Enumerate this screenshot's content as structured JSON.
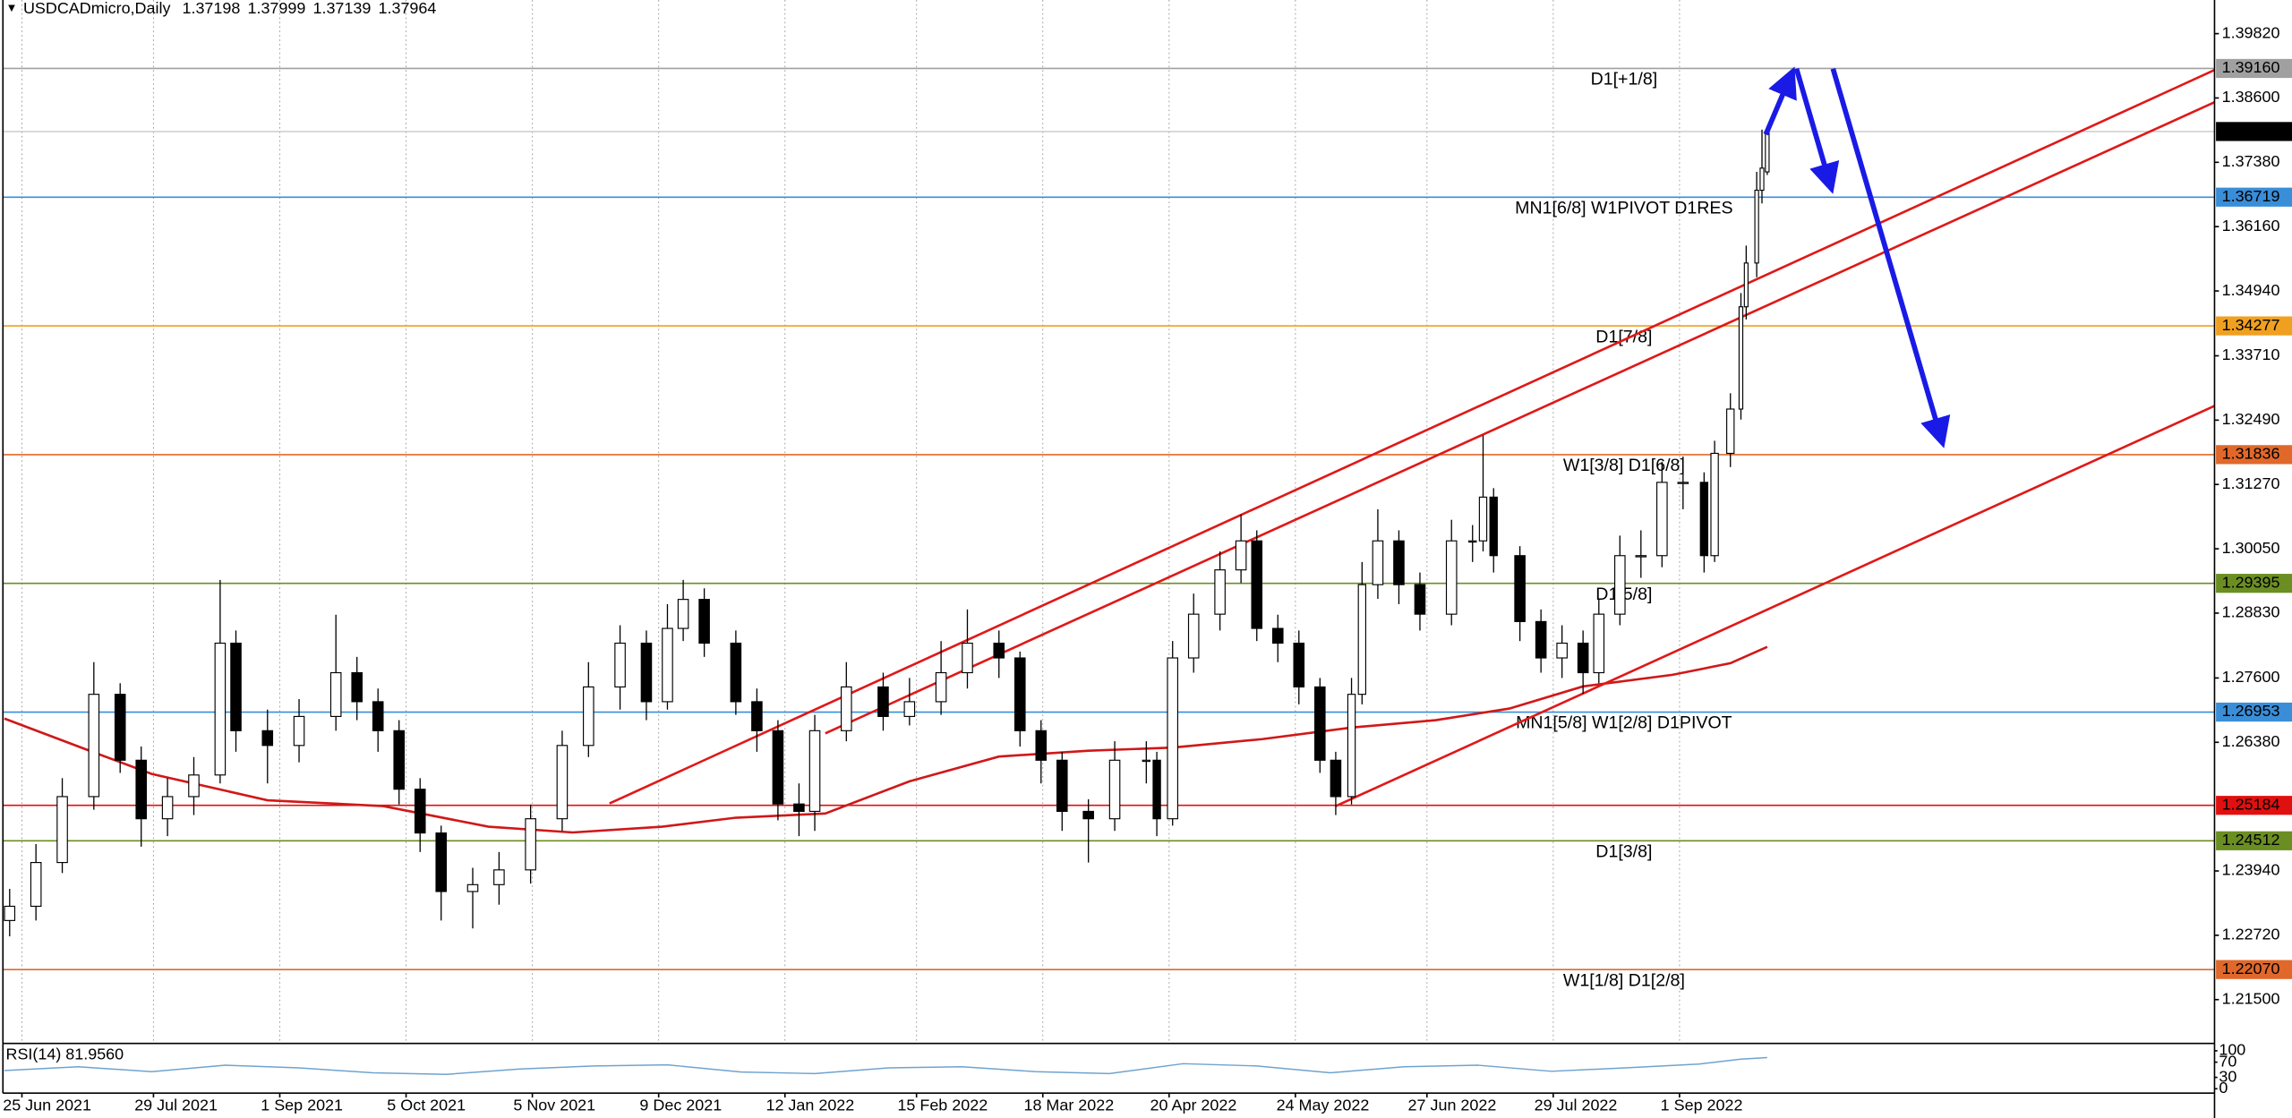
{
  "chart_data": {
    "type": "candlestick",
    "title": "USDCADmicro,Daily",
    "x": [
      1,
      6,
      11,
      17,
      22,
      26,
      31,
      36,
      41,
      44,
      50,
      56,
      63,
      67,
      71,
      75,
      79,
      83,
      89,
      94,
      100,
      106,
      111,
      117,
      122,
      126,
      129,
      133,
      139,
      143,
      147,
      151,
      154,
      160,
      167,
      172,
      178,
      183,
      189,
      193,
      197,
      201,
      206,
      211,
      217,
      219,
      222,
      226,
      231,
      235,
      238,
      242,
      246,
      250,
      253,
      256,
      258,
      261,
      265,
      269,
      275,
      279,
      281,
      283,
      288,
      292,
      296,
      300,
      303,
      307,
      311,
      315,
      319,
      323,
      325,
      328,
      330,
      331,
      333,
      334,
      335
    ],
    "open": [
      1.23,
      1.2327,
      1.241,
      1.2535,
      1.2729,
      1.2604,
      1.2493,
      1.2535,
      1.2576,
      1.2826,
      1.266,
      1.2632,
      1.2687,
      1.277,
      1.2715,
      1.266,
      1.2549,
      1.2466,
      1.2355,
      1.2368,
      1.2396,
      1.2493,
      1.2632,
      1.2743,
      1.2826,
      1.2715,
      1.2854,
      1.2909,
      1.2826,
      1.2715,
      1.266,
      1.2521,
      1.2507,
      1.266,
      1.2743,
      1.2687,
      1.2715,
      1.277,
      1.2826,
      1.2798,
      1.266,
      1.2604,
      1.2507,
      1.2493,
      1.2604,
      1.2604,
      1.2493,
      1.2798,
      1.2881,
      1.2965,
      1.302,
      1.2854,
      1.2826,
      1.2743,
      1.2604,
      1.2535,
      1.2729,
      1.2937,
      1.302,
      1.2937,
      1.2881,
      1.302,
      1.302,
      1.3103,
      1.2992,
      1.2867,
      1.2798,
      1.2826,
      1.277,
      1.2881,
      1.2992,
      1.2992,
      1.3131,
      1.3131,
      1.2992,
      1.3186,
      1.327,
      1.3464,
      1.3547,
      1.3685,
      1.37198
    ],
    "high": [
      1.236,
      1.2445,
      1.257,
      1.279,
      1.275,
      1.263,
      1.257,
      1.261,
      1.2946,
      1.285,
      1.27,
      1.272,
      1.288,
      1.28,
      1.274,
      1.268,
      1.257,
      1.248,
      1.24,
      1.243,
      1.252,
      1.266,
      1.279,
      1.286,
      1.285,
      1.29,
      1.2946,
      1.293,
      1.285,
      1.274,
      1.268,
      1.256,
      1.269,
      1.279,
      1.277,
      1.276,
      1.283,
      1.289,
      1.285,
      1.281,
      1.268,
      1.262,
      1.253,
      1.264,
      1.264,
      1.262,
      1.283,
      1.292,
      1.3,
      1.307,
      1.304,
      1.288,
      1.285,
      1.276,
      1.262,
      1.276,
      1.298,
      1.308,
      1.304,
      1.296,
      1.306,
      1.305,
      1.322,
      1.312,
      1.301,
      1.289,
      1.286,
      1.285,
      1.291,
      1.303,
      1.304,
      1.317,
      1.318,
      1.315,
      1.321,
      1.33,
      1.349,
      1.358,
      1.372,
      1.38,
      1.37999
    ],
    "low": [
      1.227,
      1.23,
      1.239,
      1.251,
      1.258,
      1.244,
      1.246,
      1.25,
      1.256,
      1.262,
      1.256,
      1.26,
      1.266,
      1.268,
      1.262,
      1.252,
      1.243,
      1.23,
      1.2285,
      1.233,
      1.237,
      1.247,
      1.261,
      1.27,
      1.268,
      1.27,
      1.283,
      1.28,
      1.269,
      1.262,
      1.249,
      1.246,
      1.247,
      1.264,
      1.266,
      1.267,
      1.269,
      1.274,
      1.276,
      1.263,
      1.256,
      1.247,
      1.241,
      1.247,
      1.256,
      1.246,
      1.248,
      1.277,
      1.285,
      1.294,
      1.283,
      1.279,
      1.271,
      1.258,
      1.25,
      1.252,
      1.271,
      1.291,
      1.29,
      1.285,
      1.286,
      1.298,
      1.3,
      1.296,
      1.283,
      1.277,
      1.276,
      1.273,
      1.275,
      1.286,
      1.295,
      1.297,
      1.308,
      1.296,
      1.298,
      1.316,
      1.325,
      1.344,
      1.352,
      1.366,
      1.37139
    ],
    "close": [
      1.2327,
      1.241,
      1.2535,
      1.2729,
      1.2604,
      1.2493,
      1.2535,
      1.2576,
      1.2826,
      1.266,
      1.2632,
      1.2687,
      1.277,
      1.2715,
      1.266,
      1.2549,
      1.2466,
      1.2355,
      1.2368,
      1.2396,
      1.2493,
      1.2632,
      1.2743,
      1.2826,
      1.2715,
      1.2854,
      1.2909,
      1.2826,
      1.2715,
      1.266,
      1.2521,
      1.2507,
      1.266,
      1.2743,
      1.2687,
      1.2715,
      1.277,
      1.2826,
      1.2798,
      1.266,
      1.2604,
      1.2507,
      1.2493,
      1.2604,
      1.2604,
      1.2493,
      1.2798,
      1.2881,
      1.2965,
      1.302,
      1.2854,
      1.2826,
      1.2743,
      1.2604,
      1.2535,
      1.2729,
      1.2937,
      1.302,
      1.2937,
      1.2881,
      1.302,
      1.302,
      1.3103,
      1.2992,
      1.2867,
      1.2798,
      1.2826,
      1.277,
      1.2881,
      1.2992,
      1.2992,
      1.3131,
      1.3131,
      1.2992,
      1.3186,
      1.327,
      1.3464,
      1.3547,
      1.3685,
      1.3727,
      1.37964
    ],
    "xlim": [
      0,
      420
    ],
    "ylim": [
      1.20696,
      1.40458
    ],
    "yticks": [
      {
        "value": 1.3982,
        "label": "1.39820"
      },
      {
        "value": 1.386,
        "label": "1.38600"
      },
      {
        "value": 1.3738,
        "label": "1.37380"
      },
      {
        "value": 1.3616,
        "label": "1.36160"
      },
      {
        "value": 1.3494,
        "label": "1.34940"
      },
      {
        "value": 1.3371,
        "label": "1.33710"
      },
      {
        "value": 1.3249,
        "label": "1.32490"
      },
      {
        "value": 1.3127,
        "label": "1.31270"
      },
      {
        "value": 1.3005,
        "label": "1.30050"
      },
      {
        "value": 1.2883,
        "label": "1.28830"
      },
      {
        "value": 1.276,
        "label": "1.27600"
      },
      {
        "value": 1.2638,
        "label": "1.26380"
      },
      {
        "value": 1.2394,
        "label": "1.23940"
      },
      {
        "value": 1.2272,
        "label": "1.22720"
      },
      {
        "value": 1.215,
        "label": "1.21500"
      }
    ],
    "xticks": [
      {
        "value": 0,
        "label": "25 Jun 2021"
      },
      {
        "value": 25,
        "label": "29 Jul 2021"
      },
      {
        "value": 49,
        "label": "1 Sep 2021"
      },
      {
        "value": 73,
        "label": "5 Oct 2021"
      },
      {
        "value": 97,
        "label": "5 Nov 2021"
      },
      {
        "value": 121,
        "label": "9 Dec 2021"
      },
      {
        "value": 145,
        "label": "12 Jan 2022"
      },
      {
        "value": 170,
        "label": "15 Feb 2022"
      },
      {
        "value": 194,
        "label": "18 Mar 2022"
      },
      {
        "value": 218,
        "label": "20 Apr 2022"
      },
      {
        "value": 242,
        "label": "24 May 2022"
      },
      {
        "value": 267,
        "label": "27 Jun 2022"
      },
      {
        "value": 291,
        "label": "29 Jul 2022"
      },
      {
        "value": 315,
        "label": "1 Sep 2022"
      }
    ],
    "grid": true,
    "up_color": "#ffffff",
    "down_color": "#000000",
    "moving_average": {
      "color": "#d01818",
      "x": [
        0,
        17,
        28,
        50,
        72,
        92,
        108,
        125,
        139,
        156,
        172,
        189,
        206,
        222,
        239,
        256,
        272,
        286,
        300,
        317,
        328,
        335
      ],
      "values": [
        1.2683,
        1.2619,
        1.2578,
        1.2528,
        1.2517,
        1.2478,
        1.2467,
        1.2478,
        1.2495,
        1.2503,
        1.2564,
        1.2611,
        1.2622,
        1.2628,
        1.2644,
        1.2666,
        1.268,
        1.2702,
        1.2744,
        1.2766,
        1.2788,
        1.2819
      ]
    },
    "trendlines": [
      {
        "color": "#e01818",
        "x": [
          115,
          420
        ],
        "values": [
          1.2522,
          1.3913
        ]
      },
      {
        "color": "#e01818",
        "x": [
          156,
          420
        ],
        "values": [
          1.2655,
          1.3852
        ]
      },
      {
        "color": "#e01818",
        "x": [
          253,
          420
        ],
        "values": [
          1.2517,
          1.3276
        ]
      }
    ],
    "levels": [
      {
        "price": 1.3916,
        "price_label": "1.39160",
        "name": "D1[+1/8]",
        "color": "#a0a0a0"
      },
      {
        "price": 1.36719,
        "price_label": "1.36719",
        "name": "MN1[6/8] W1PIVOT D1RES",
        "color": "#3a8ed8"
      },
      {
        "price": 1.34277,
        "price_label": "1.34277",
        "name": "D1[7/8]",
        "color": "#f0a020"
      },
      {
        "price": 1.31836,
        "price_label": "1.31836",
        "name": "W1[3/8] D1[6/8]",
        "color": "#e0682a"
      },
      {
        "price": 1.29395,
        "price_label": "1.29395",
        "name": "D1[5/8]",
        "color": "#6b8e23"
      },
      {
        "price": 1.26953,
        "price_label": "1.26953",
        "name": "MN1[5/8] W1[2/8] D1PIVOT",
        "color": "#3a8ed8"
      },
      {
        "price": 1.25184,
        "price_label": "1.25184",
        "color": "#e01010"
      },
      {
        "price": 1.24512,
        "price_label": "1.24512",
        "name": "D1[3/8]",
        "color": "#6b8e23"
      },
      {
        "price": 1.2207,
        "price_label": "1.22070",
        "name": "W1[1/8] D1[2/8]",
        "color": "#e0682a"
      }
    ],
    "rsi": {
      "title": "RSI(14) 81.9560",
      "color": "#6fa3cf",
      "x": [
        0,
        14,
        28,
        42,
        56,
        70,
        84,
        98,
        112,
        126,
        140,
        154,
        168,
        182,
        196,
        210,
        224,
        238,
        252,
        266,
        280,
        294,
        308,
        322,
        330,
        335
      ],
      "values": [
        48,
        58,
        45,
        62,
        55,
        42,
        38,
        52,
        60,
        63,
        44,
        40,
        55,
        58,
        45,
        40,
        66,
        60,
        42,
        58,
        62,
        46,
        55,
        65,
        78,
        81.956
      ],
      "ylim": [
        0,
        100
      ],
      "yticks": [
        0,
        30,
        70,
        100
      ]
    }
  }
}
